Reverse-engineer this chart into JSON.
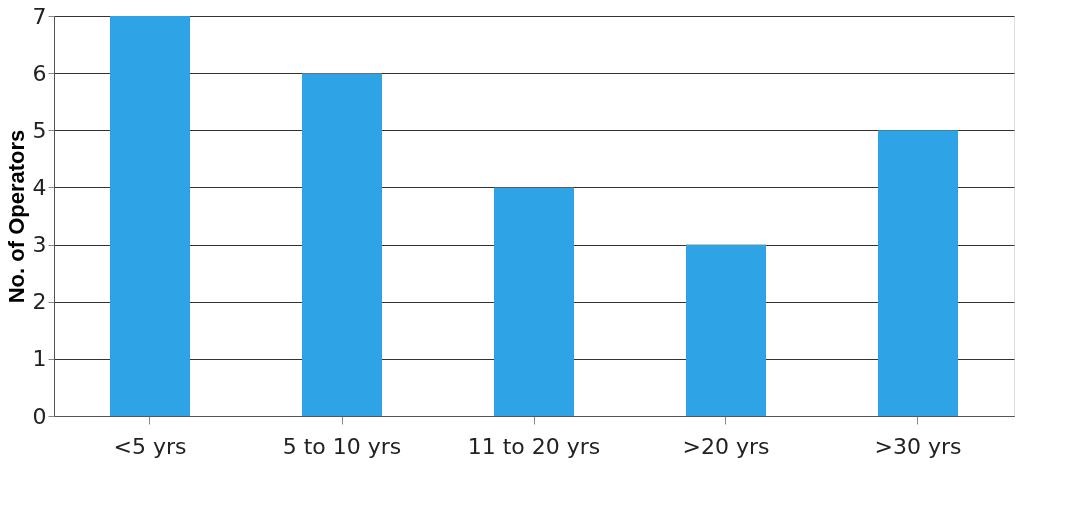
{
  "chart_data": {
    "type": "bar",
    "categories": [
      "<5 yrs",
      "5 to 10 yrs",
      "11 to 20 yrs",
      ">20 yrs",
      ">30 yrs"
    ],
    "values": [
      7,
      6,
      4,
      3,
      5
    ],
    "color": "#2ea3e6",
    "ylabel": "No. of Operators",
    "ylim": [
      0,
      7
    ],
    "yticks": [
      0,
      1,
      2,
      3,
      4,
      5,
      6,
      7
    ],
    "grid": "y"
  }
}
